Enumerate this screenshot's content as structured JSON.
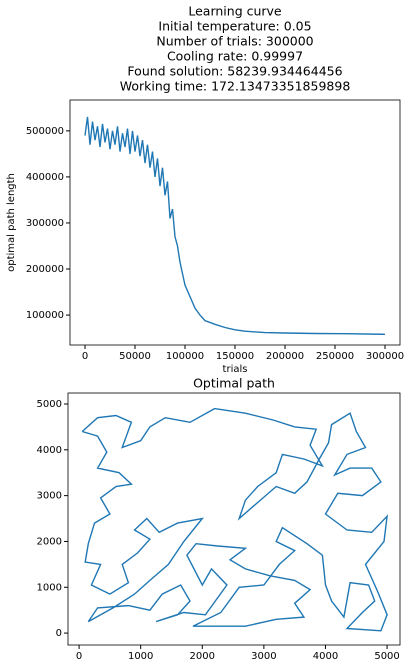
{
  "chart_data": [
    {
      "type": "line",
      "title": "Learning curve",
      "subtitle": [
        "Initial temperature: 0.05",
        "Number of trials: 300000",
        "Cooling rate: 0.99997",
        "Found solution: 58239.934464456",
        "Working time: 172.13473351859898"
      ],
      "x_label": "trials",
      "y_label": "optimal path length",
      "color": "#1f77b4",
      "x": [
        0,
        2500,
        5000,
        7500,
        10000,
        12500,
        15000,
        17500,
        20000,
        22500,
        25000,
        27500,
        30000,
        32500,
        35000,
        37500,
        40000,
        42500,
        45000,
        47500,
        50000,
        52500,
        55000,
        57500,
        60000,
        62500,
        65000,
        67500,
        70000,
        72500,
        75000,
        77500,
        80000,
        82500,
        85000,
        87500,
        90000,
        92500,
        95000,
        97500,
        100000,
        105000,
        110000,
        115000,
        120000,
        130000,
        140000,
        150000,
        160000,
        180000,
        200000,
        230000,
        260000,
        300000
      ],
      "values": [
        490000,
        530000,
        470000,
        520000,
        480000,
        510000,
        465000,
        515000,
        475000,
        505000,
        460000,
        500000,
        470000,
        510000,
        455000,
        495000,
        465000,
        505000,
        450000,
        500000,
        455000,
        490000,
        445000,
        480000,
        430000,
        470000,
        420000,
        455000,
        400000,
        440000,
        380000,
        420000,
        360000,
        390000,
        310000,
        330000,
        270000,
        250000,
        215000,
        190000,
        165000,
        140000,
        115000,
        100000,
        88000,
        80000,
        73000,
        68000,
        65000,
        62000,
        61000,
        60000,
        59500,
        58240
      ],
      "xlim": [
        -15000,
        315000
      ],
      "ylim": [
        35000,
        567000
      ],
      "xticks": [
        0,
        50000,
        100000,
        150000,
        200000,
        250000,
        300000
      ],
      "yticks": [
        100000,
        200000,
        300000,
        400000,
        500000
      ]
    },
    {
      "type": "line",
      "title": "Optimal path",
      "color": "#1f77b4",
      "x": [
        50,
        300,
        450,
        300,
        650,
        850,
        600,
        350,
        500,
        250,
        150,
        100,
        350,
        200,
        500,
        800,
        700,
        950,
        1150,
        900,
        1100,
        1300,
        1600,
        2000,
        1700,
        1450,
        1150,
        900,
        550,
        150,
        300,
        800,
        1150,
        1350,
        1650,
        1800,
        1600,
        1250,
        1700,
        2050,
        2400,
        2150,
        2000,
        1750,
        1900,
        2250,
        2700,
        2450,
        2700,
        3100,
        3500,
        3750,
        3500,
        3650,
        3200,
        2700,
        1850,
        2300,
        2600,
        3000,
        3250,
        3500,
        3200,
        3300,
        3700,
        3950,
        4000,
        4100,
        4300,
        4400,
        4700,
        4800,
        4600,
        4350,
        4900,
        5000,
        4850,
        4650,
        4950,
        5000,
        4750,
        4350,
        4000,
        4200,
        4600,
        4900,
        4750,
        4400,
        4150,
        4350,
        4650,
        4500,
        4400,
        4100,
        4050,
        3900,
        3700,
        3500,
        3200,
        2900,
        2600,
        2700,
        2900,
        3200,
        3300,
        3650,
        3950,
        3750,
        3850,
        3500,
        3150,
        2700,
        2200,
        1800,
        1400,
        1150,
        1000,
        700,
        850,
        600,
        300,
        50
      ],
      "values": [
        4400,
        4300,
        3950,
        3600,
        3500,
        3250,
        3200,
        2950,
        2600,
        2400,
        1950,
        1550,
        1500,
        1050,
        850,
        1100,
        1500,
        1750,
        2050,
        2250,
        2500,
        2200,
        2400,
        2500,
        2000,
        1500,
        1150,
        850,
        550,
        250,
        550,
        600,
        500,
        850,
        1050,
        700,
        400,
        250,
        450,
        400,
        1050,
        1400,
        1050,
        1700,
        1950,
        1900,
        1850,
        1600,
        1400,
        1250,
        1150,
        950,
        650,
        350,
        300,
        150,
        150,
        450,
        1000,
        1050,
        1500,
        1800,
        2000,
        2300,
        1950,
        1700,
        1050,
        700,
        350,
        1100,
        1050,
        700,
        450,
        100,
        50,
        400,
        900,
        1500,
        2000,
        2550,
        2200,
        2250,
        2600,
        3050,
        3000,
        3300,
        3600,
        3600,
        3450,
        3900,
        4050,
        4400,
        4800,
        4550,
        4150,
        3800,
        3300,
        3050,
        3200,
        2850,
        2500,
        2900,
        3200,
        3500,
        3900,
        3800,
        3650,
        4100,
        4450,
        4500,
        4650,
        4800,
        4900,
        4600,
        4700,
        4500,
        4200,
        4050,
        4600,
        4750,
        4700,
        4400
      ],
      "xlim": [
        -180,
        5210
      ],
      "ylim": [
        -260,
        5240
      ],
      "xticks": [
        0,
        1000,
        2000,
        3000,
        4000,
        5000
      ],
      "yticks": [
        0,
        1000,
        2000,
        3000,
        4000,
        5000
      ]
    }
  ]
}
